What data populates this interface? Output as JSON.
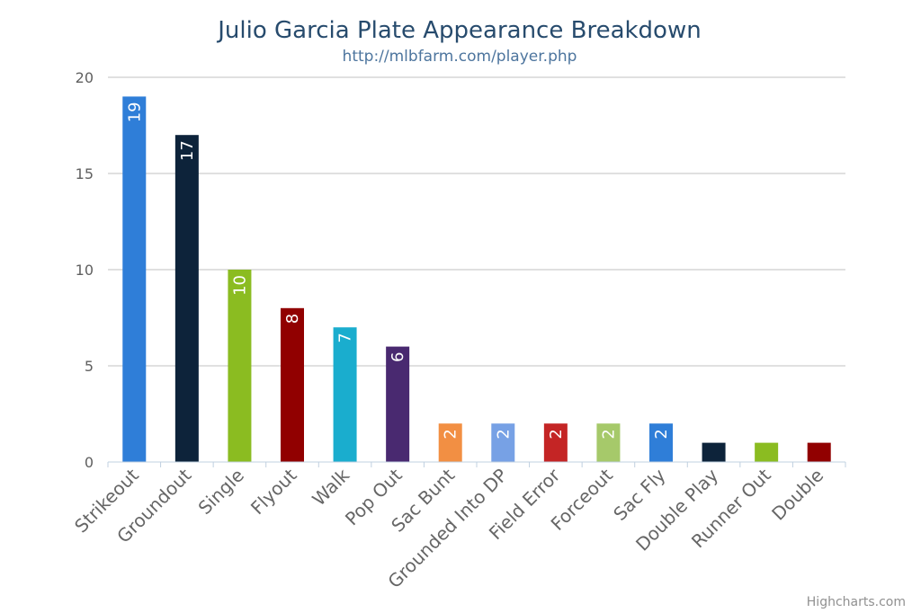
{
  "chart_data": {
    "type": "bar",
    "title": "Julio Garcia Plate Appearance Breakdown",
    "subtitle": "http://mlbfarm.com/player.php",
    "categories": [
      "Strikeout",
      "Groundout",
      "Single",
      "Flyout",
      "Walk",
      "Pop Out",
      "Sac Bunt",
      "Grounded Into DP",
      "Field Error",
      "Forceout",
      "Sac Fly",
      "Double Play",
      "Runner Out",
      "Double"
    ],
    "values": [
      19,
      17,
      10,
      8,
      7,
      6,
      2,
      2,
      2,
      2,
      2,
      1,
      1,
      1
    ],
    "show_data_labels_for": [
      19,
      17,
      10,
      8,
      7,
      6,
      2,
      2,
      2,
      2,
      2
    ],
    "colors": [
      "#2f7ed8",
      "#0d233a",
      "#8bbc21",
      "#910000",
      "#1aadce",
      "#492970",
      "#f28f43",
      "#77a1e5",
      "#c42525",
      "#a6c96a",
      "#2f7ed8",
      "#0d233a",
      "#8bbc21",
      "#910000"
    ],
    "yticks": [
      0,
      5,
      10,
      15,
      20
    ],
    "ylim": [
      0,
      20
    ],
    "grid": true,
    "legend": "none"
  },
  "credits": "Highcharts.com"
}
